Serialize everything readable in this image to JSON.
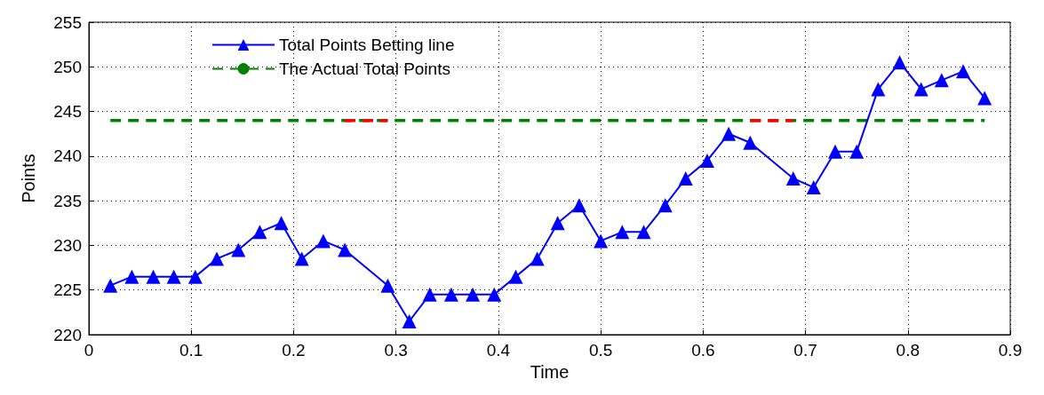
{
  "chart_data": {
    "type": "line",
    "xlabel": "Time",
    "ylabel": "Points",
    "xlim": [
      0,
      0.9
    ],
    "xticks": [
      0,
      0.1,
      0.2,
      0.3,
      0.4,
      0.5,
      0.6,
      0.7,
      0.8,
      0.9
    ],
    "ylim": [
      220,
      255
    ],
    "yticks": [
      220,
      225,
      230,
      235,
      240,
      245,
      250,
      255
    ],
    "grid": true,
    "legend": "top left",
    "series": [
      {
        "name": "The Actual Total Points",
        "color": "#008000",
        "line_style": "dashed",
        "marker": "none",
        "x": [
          0.021,
          0.875
        ],
        "values": [
          244,
          244
        ]
      },
      {
        "color": "#ff0000",
        "line_style": "dashed",
        "marker": "none",
        "x": [
          0.25,
          0.292,
          0.5,
          0.646,
          0.688
        ],
        "values": [
          244,
          244,
          null,
          244,
          244
        ]
      },
      {
        "name": "Total Points Betting line",
        "color": "#0000ff",
        "line_style": "solid",
        "marker": "triangle",
        "x": [
          0.021,
          0.042,
          0.063,
          0.083,
          0.104,
          0.125,
          0.146,
          0.167,
          0.188,
          0.208,
          0.229,
          0.25,
          0.292,
          0.313,
          0.333,
          0.354,
          0.375,
          0.396,
          0.417,
          0.438,
          0.458,
          0.479,
          0.5,
          0.521,
          0.542,
          0.563,
          0.583,
          0.604,
          0.625,
          0.646,
          0.688,
          0.708,
          0.729,
          0.75,
          0.771,
          0.792,
          0.813,
          0.833,
          0.854,
          0.875
        ],
        "values": [
          225.5,
          226.5,
          226.5,
          226.5,
          226.5,
          228.5,
          229.5,
          231.5,
          232.5,
          228.5,
          230.5,
          229.5,
          225.5,
          221.5,
          224.5,
          224.5,
          224.5,
          224.5,
          226.5,
          228.5,
          232.5,
          234.5,
          230.5,
          231.5,
          231.5,
          234.5,
          237.5,
          239.5,
          242.5,
          241.5,
          237.5,
          236.5,
          240.5,
          240.5,
          247.5,
          250.5,
          247.5,
          248.5,
          249.5,
          246.5
        ]
      }
    ]
  }
}
